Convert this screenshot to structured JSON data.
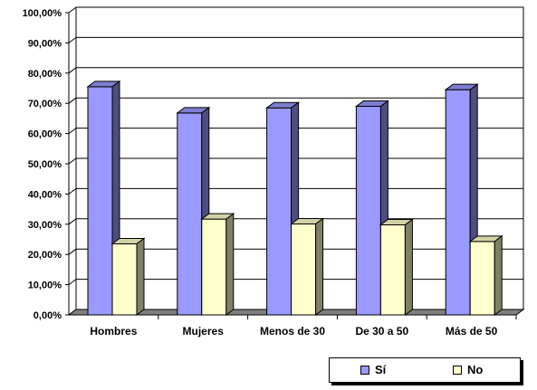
{
  "chart_data": {
    "type": "bar",
    "categories": [
      "Hombres",
      "Mujeres",
      "Menos de 30",
      "De 30 a 50",
      "Más de 50"
    ],
    "series": [
      {
        "name": "Sí",
        "values": [
          75.5,
          66.8,
          68.5,
          69.0,
          74.5
        ],
        "color": "#9999ff"
      },
      {
        "name": "No",
        "values": [
          23.5,
          31.7,
          30.1,
          29.8,
          24.3
        ],
        "color": "#ffffcc"
      }
    ],
    "yticks": [
      "0,00%",
      "10,00%",
      "20,00%",
      "30,00%",
      "40,00%",
      "50,00%",
      "60,00%",
      "70,00%",
      "80,00%",
      "90,00%",
      "100,00%"
    ],
    "ylim": [
      0,
      100
    ],
    "grid": true,
    "legend_position": "bottom-right",
    "title": "",
    "xlabel": "",
    "ylabel": ""
  }
}
